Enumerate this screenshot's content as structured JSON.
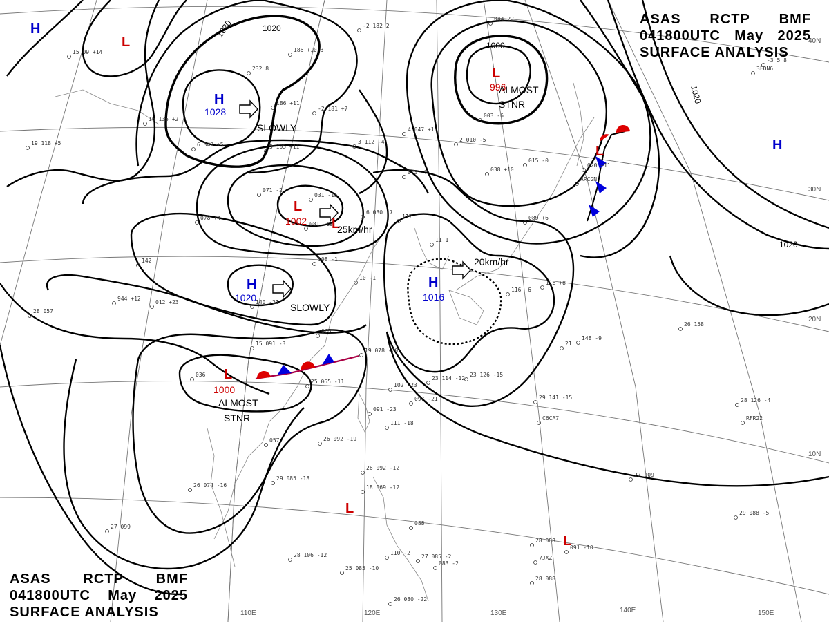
{
  "header_top": {
    "line1": [
      "ASAS",
      "RCTP",
      "BMF"
    ],
    "line2": [
      "041800UTC",
      "May",
      "2025"
    ],
    "line3": "SURFACE ANALYSIS"
  },
  "header_bottom": {
    "line1": [
      "ASAS",
      "RCTP",
      "BMF"
    ],
    "line2": [
      "041800UTC",
      "May",
      "2025"
    ],
    "line3": "SURFACE ANALYSIS"
  },
  "colors": {
    "high": "#0000cc",
    "low": "#cc0000",
    "isobar": "#000000",
    "cold_front": "#0000dd",
    "warm_front": "#dd0000"
  },
  "longitude_labels": [
    "110E",
    "120E",
    "130E",
    "140E",
    "150E"
  ],
  "latitude_labels": [
    "40N",
    "30N",
    "20N",
    "10N"
  ],
  "isobar_labels": [
    "1020",
    "1020",
    "1020",
    "1020",
    "1000"
  ],
  "pressure_centers": [
    {
      "type": "H",
      "value": ""
    },
    {
      "type": "L",
      "value": ""
    },
    {
      "type": "H",
      "value": "1028"
    },
    {
      "type": "L",
      "value": "996"
    },
    {
      "type": "H",
      "value": ""
    },
    {
      "type": "L",
      "value": "1002"
    },
    {
      "type": "L",
      "value": ""
    },
    {
      "type": "H",
      "value": "1020"
    },
    {
      "type": "H",
      "value": "1016"
    },
    {
      "type": "L",
      "value": "1000"
    },
    {
      "type": "L",
      "value": ""
    },
    {
      "type": "L",
      "value": ""
    },
    {
      "type": "L",
      "value": ""
    }
  ],
  "annotations": [
    "SLOWLY",
    "ALMOST",
    "STNR",
    "25km/hr",
    "SLOWLY",
    "20km/hr",
    "ALMOST",
    "STNR"
  ],
  "stations": [
    "15 09 +14",
    "232 8",
    "186 +11",
    "-2 181 +7",
    "186 +10 3",
    "-2 182 2",
    "044 22",
    "-3 5 8",
    "3FON6",
    "16 135 +2",
    "6 342 +5",
    "5 105 +11",
    "3 112 -4",
    "4 047 +1",
    "003 -6",
    "2 010 -5",
    "015 -0",
    "19 118 +5",
    "071 -2",
    "031 -15",
    "081 -19",
    "6 030 -7",
    "117",
    "038 +10",
    "073 -7",
    "020 +11",
    "ARCGN",
    "078 +4",
    "142",
    "108 -1",
    "10 -1",
    "089 +6",
    "944 +12",
    "012 +23",
    "140 -21",
    "11 1",
    "116 +6",
    "118 +8",
    "28 057",
    "15 091 -3",
    "065",
    "19 078 -20",
    "148 -9",
    "21",
    "26 158",
    "036",
    "25 065 -11",
    "23 114 -12",
    "23 126 -15",
    "29 141 -15",
    "C6CA7",
    "28 126 -4",
    "RFR22",
    "102 -23",
    "097 -21",
    "091 -23",
    "111 -18",
    "057",
    "26 092 -19",
    "26 074 -16",
    "29 085 -18",
    "26 092 -12",
    "18 069 -12",
    "27 109",
    "29 088 -5",
    "27 099",
    "088",
    "28 088",
    "7JXZ",
    "091 -10",
    "28 106 -12",
    "25 085 -10",
    "110 -2",
    "27 085 -2",
    "083 -2",
    "26 080 -22",
    "28 088"
  ]
}
